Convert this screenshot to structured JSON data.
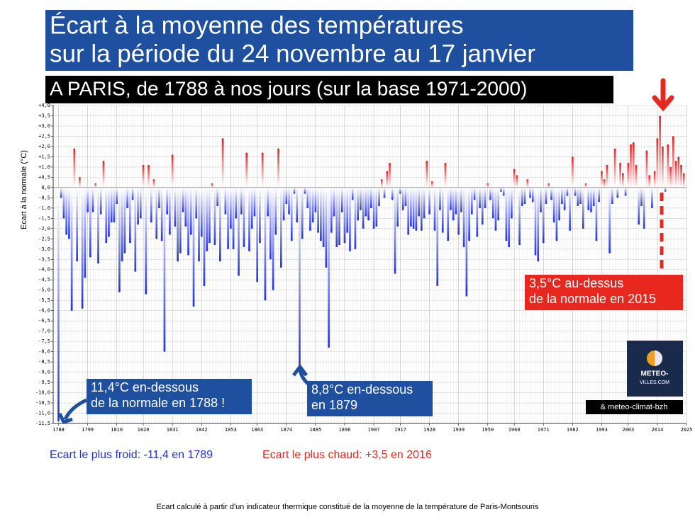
{
  "chart_data": {
    "type": "bar",
    "title": [
      "Écart à la moyenne des températures",
      "sur la période du 24 novembre au 17 janvier"
    ],
    "subtitle": "A PARIS, de 1788 à nos jours (sur la base 1971-2000)",
    "y_label": "Ecart à la normale (°C)",
    "colors": {
      "negative": "#2233dd",
      "positive": "#dd2222"
    },
    "grid": true,
    "xlim": [
      1786,
      2025
    ],
    "ylim": [
      -11.5,
      4
    ],
    "xticks": [
      1788,
      1799,
      1810,
      1820,
      1831,
      1842,
      1853,
      1863,
      1874,
      1885,
      1896,
      1907,
      1917,
      1928,
      1939,
      1950,
      1960,
      1971,
      1982,
      1993,
      2003,
      2014,
      2025
    ],
    "yticks": [
      {
        "value": 4,
        "label": "+4,0"
      },
      {
        "value": 3.5,
        "label": "+3,5"
      },
      {
        "value": 3,
        "label": "+3,0"
      },
      {
        "value": 2.5,
        "label": "+2,5"
      },
      {
        "value": 2,
        "label": "+2,0"
      },
      {
        "value": 1.5,
        "label": "+1,5"
      },
      {
        "value": 1,
        "label": "+1,0"
      },
      {
        "value": 0.5,
        "label": "+0,5"
      },
      {
        "value": 0,
        "label": "0,0"
      },
      {
        "value": -0.5,
        "label": "-0,5"
      },
      {
        "value": -1,
        "label": "-1,0"
      },
      {
        "value": -1.5,
        "label": "-1,5"
      },
      {
        "value": -2,
        "label": "-2,0"
      },
      {
        "value": -2.5,
        "label": "-2,5"
      },
      {
        "value": -3,
        "label": "-3,0"
      },
      {
        "value": -3.5,
        "label": "-3,5"
      },
      {
        "value": -4,
        "label": "-4,0"
      },
      {
        "value": -4.5,
        "label": "-4,5"
      },
      {
        "value": -5,
        "label": "-5,0"
      },
      {
        "value": -5.5,
        "label": "-5,5"
      },
      {
        "value": -6,
        "label": "-6,0"
      },
      {
        "value": -6.5,
        "label": "-6,5"
      },
      {
        "value": -7,
        "label": "-7,0"
      },
      {
        "value": -7.5,
        "label": "-7,5"
      },
      {
        "value": -8,
        "label": "-8,0"
      },
      {
        "value": -8.5,
        "label": "-8,5"
      },
      {
        "value": -9,
        "label": "-9,0"
      },
      {
        "value": -9.5,
        "label": "-9,5"
      },
      {
        "value": -10,
        "label": "-10,0"
      },
      {
        "value": -10.5,
        "label": "-10,5"
      },
      {
        "value": -11,
        "label": "-11,0"
      },
      {
        "value": -11.5,
        "label": "-11,5"
      }
    ],
    "x": [
      1788,
      1789,
      1790,
      1791,
      1792,
      1793,
      1794,
      1795,
      1796,
      1797,
      1798,
      1799,
      1800,
      1801,
      1802,
      1803,
      1804,
      1805,
      1806,
      1807,
      1808,
      1809,
      1810,
      1811,
      1812,
      1813,
      1814,
      1815,
      1816,
      1817,
      1818,
      1819,
      1820,
      1821,
      1822,
      1823,
      1824,
      1825,
      1826,
      1827,
      1828,
      1829,
      1830,
      1831,
      1832,
      1833,
      1834,
      1835,
      1836,
      1837,
      1838,
      1839,
      1840,
      1841,
      1842,
      1843,
      1844,
      1845,
      1846,
      1847,
      1848,
      1849,
      1850,
      1851,
      1852,
      1853,
      1854,
      1855,
      1856,
      1857,
      1858,
      1859,
      1860,
      1861,
      1862,
      1863,
      1864,
      1865,
      1866,
      1867,
      1868,
      1869,
      1870,
      1871,
      1872,
      1873,
      1874,
      1875,
      1876,
      1877,
      1878,
      1879,
      1880,
      1881,
      1882,
      1883,
      1884,
      1885,
      1886,
      1887,
      1888,
      1889,
      1890,
      1891,
      1892,
      1893,
      1894,
      1895,
      1896,
      1897,
      1898,
      1899,
      1900,
      1901,
      1902,
      1903,
      1904,
      1905,
      1906,
      1907,
      1908,
      1909,
      1910,
      1911,
      1912,
      1913,
      1914,
      1915,
      1916,
      1917,
      1918,
      1919,
      1920,
      1921,
      1922,
      1923,
      1924,
      1925,
      1926,
      1927,
      1928,
      1929,
      1930,
      1931,
      1932,
      1933,
      1934,
      1935,
      1936,
      1937,
      1938,
      1939,
      1940,
      1941,
      1942,
      1943,
      1944,
      1945,
      1946,
      1947,
      1948,
      1949,
      1950,
      1951,
      1952,
      1953,
      1954,
      1955,
      1956,
      1957,
      1958,
      1959,
      1960,
      1961,
      1962,
      1963,
      1964,
      1965,
      1966,
      1967,
      1968,
      1969,
      1970,
      1971,
      1972,
      1973,
      1974,
      1975,
      1976,
      1977,
      1978,
      1979,
      1980,
      1981,
      1982,
      1983,
      1984,
      1985,
      1986,
      1987,
      1988,
      1989,
      1990,
      1991,
      1992,
      1993,
      1994,
      1995,
      1996,
      1997,
      1998,
      1999,
      2000,
      2001,
      2002,
      2003,
      2004,
      2005,
      2006,
      2007,
      2008,
      2009,
      2010,
      2011,
      2012,
      2013,
      2014,
      2015,
      2016,
      2017,
      2018,
      2019,
      2020,
      2021,
      2022,
      2023,
      2024
    ],
    "values": [
      -11.4,
      -0.5,
      -1.5,
      -2.3,
      -2.5,
      -6.0,
      1.9,
      -3.6,
      0.5,
      -5.9,
      -4.4,
      -1.2,
      -3.4,
      -1.2,
      0.2,
      -3.7,
      -1.3,
      1.3,
      -2.7,
      -2.4,
      -1.7,
      -1.7,
      -0.8,
      -5.1,
      -3.6,
      -3.2,
      -1.0,
      -2.7,
      -0.6,
      -4.1,
      -1.8,
      -1.5,
      1.1,
      -5.2,
      1.1,
      -1.7,
      0.4,
      -2.5,
      -1.0,
      -2.6,
      -8.0,
      -1.3,
      -2.3,
      1.6,
      -1.9,
      -3.6,
      -3.2,
      -1.2,
      -1.9,
      -3.3,
      -2.3,
      -5.8,
      -1.5,
      -3.6,
      -2.4,
      -4.8,
      -3.1,
      -2.7,
      0.2,
      -2.8,
      -0.9,
      -3.6,
      2.4,
      -1.3,
      -3.0,
      -2.0,
      -3.0,
      -1.5,
      -4.3,
      -1.3,
      -2.9,
      1.7,
      -3.1,
      -2.0,
      -1.4,
      -4.6,
      -2.7,
      1.7,
      -5.5,
      -1.4,
      -3.5,
      -5.0,
      -2.3,
      1.9,
      -3.9,
      -1.6,
      -0.8,
      -1.3,
      -2.6,
      -0.3,
      -1.7,
      -8.8,
      -2.5,
      -0.3,
      -1.0,
      -2.1,
      -1.7,
      -1.2,
      -2.2,
      -2.6,
      -2.9,
      -3.9,
      -7.8,
      -2.2,
      -1.4,
      -2.9,
      -2.8,
      -1.2,
      -2.7,
      -2.2,
      -3.1,
      -0.6,
      -3.0,
      -1.6,
      -1.1,
      -2.0,
      -1.4,
      -1.6,
      -1.0,
      -2.0,
      -1.9,
      -0.9,
      0.4,
      -0.5,
      0.8,
      1.2,
      -0.6,
      -4.2,
      -1.9,
      -0.3,
      -1.1,
      -0.9,
      -2.3,
      -1.9,
      -2.0,
      -2.1,
      -1.4,
      -2.1,
      -1.5,
      1.3,
      -1.3,
      0.3,
      -2.1,
      -4.8,
      -1.1,
      -2.2,
      1.2,
      -2.6,
      -1.1,
      -1.6,
      -1.3,
      -2.3,
      -1.2,
      -2.9,
      -5.3,
      -2.6,
      -1.3,
      -0.6,
      -2.4,
      -1.0,
      -1.8,
      -1.0,
      0.2,
      -0.6,
      -1.5,
      -2.1,
      -1.6,
      -0.2,
      -0.4,
      -2.6,
      -2.9,
      -1.5,
      0.9,
      0.6,
      -2.8,
      -0.9,
      -0.8,
      0.4,
      -0.5,
      -0.7,
      -3.3,
      -3.6,
      -1.2,
      -2.7,
      -0.8,
      0.2,
      -0.6,
      -1.7,
      -2.6,
      -1.6,
      -0.8,
      -1.1,
      -0.4,
      -2.1,
      1.5,
      -0.4,
      -0.9,
      -0.8,
      -2.0,
      0.2,
      -1.1,
      -1.2,
      -0.9,
      -2.6,
      -0.7,
      0.8,
      0.4,
      1.1,
      -3.2,
      -0.8,
      1.9,
      -0.5,
      1.2,
      0.7,
      -0.4,
      1.2,
      2.1,
      2.2,
      1.1,
      -1.8,
      -0.9,
      -2.0,
      1.8,
      0.6,
      -1.0,
      0.8,
      2.4,
      3.5,
      2.0,
      -0.2,
      2.1,
      1.0,
      2.5,
      1.3,
      1.5,
      1.1,
      0.7
    ],
    "annotations": [
      {
        "lines": [
          "11,4°C en-dessous",
          "de la normale en 1788 !"
        ]
      },
      {
        "lines": [
          "8,8°C en-dessous",
          "en 1879"
        ]
      },
      {
        "lines": [
          "3,5°C au-dessus",
          "de la normale en 2015"
        ]
      }
    ],
    "logo": [
      "METEO-",
      "VILLES.COM"
    ],
    "credit": "& meteo-climat-bzh",
    "coldest_note": "Ecart le plus froid: -11,4 en 1789",
    "warmest_note": "Ecart le plus chaud: +3,5 en 2016",
    "footnote": "Ecart calculé à partir d'un indicateur thermique constitué de la moyenne de la température de Paris-Montsouris"
  }
}
